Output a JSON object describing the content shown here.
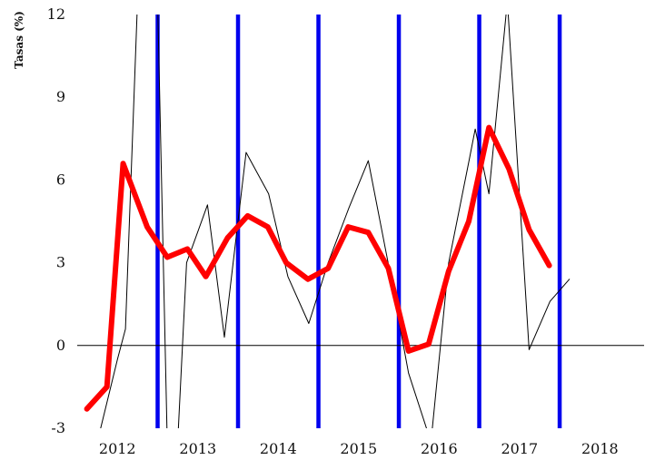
{
  "chart_data": {
    "type": "line",
    "ylabel": "Tasas (%)",
    "xlabel": "",
    "ylim": [
      -3,
      12
    ],
    "yticks": [
      -3,
      0,
      3,
      6,
      9,
      12
    ],
    "xlim": [
      2011.5,
      2018.55
    ],
    "xticks": [
      {
        "label": "2012",
        "x": 2012
      },
      {
        "label": "2013",
        "x": 2013
      },
      {
        "label": "2014",
        "x": 2014
      },
      {
        "label": "2015",
        "x": 2015
      },
      {
        "label": "2016",
        "x": 2016
      },
      {
        "label": "2017",
        "x": 2017
      },
      {
        "label": "2018",
        "x": 2018
      }
    ],
    "grid": false,
    "zero_line": true,
    "vertical_markers": {
      "color": "#0000ee",
      "x": [
        2012.5,
        2013.5,
        2014.5,
        2015.5,
        2016.5,
        2017.5
      ]
    },
    "series": [
      {
        "color": "#000000",
        "style": "thin",
        "points": [
          [
            2011.75,
            -3.5
          ],
          [
            2012.0,
            -0.5
          ],
          [
            2012.1,
            0.6
          ],
          [
            2012.25,
            12.5
          ],
          [
            2012.5,
            12.5
          ],
          [
            2012.62,
            -3.5
          ],
          [
            2012.75,
            -3.5
          ],
          [
            2012.86,
            3.0
          ],
          [
            2013.12,
            5.1
          ],
          [
            2013.33,
            0.3
          ],
          [
            2013.6,
            7.0
          ],
          [
            2013.88,
            5.5
          ],
          [
            2014.12,
            2.5
          ],
          [
            2014.38,
            0.8
          ],
          [
            2014.62,
            3.0
          ],
          [
            2014.88,
            5.0
          ],
          [
            2015.12,
            6.7
          ],
          [
            2015.38,
            2.8
          ],
          [
            2015.62,
            -1.0
          ],
          [
            2015.9,
            -3.5
          ],
          [
            2016.12,
            3.0
          ],
          [
            2016.38,
            6.8
          ],
          [
            2016.45,
            7.85
          ],
          [
            2016.62,
            5.5
          ],
          [
            2016.85,
            12.5
          ],
          [
            2017.12,
            -0.15
          ],
          [
            2017.38,
            1.6
          ],
          [
            2017.62,
            2.4
          ]
        ]
      },
      {
        "color": "#ff0000",
        "style": "thick",
        "points": [
          [
            2011.62,
            -2.3
          ],
          [
            2011.87,
            -1.5
          ],
          [
            2012.07,
            6.6
          ],
          [
            2012.37,
            4.3
          ],
          [
            2012.62,
            3.2
          ],
          [
            2012.87,
            3.5
          ],
          [
            2013.1,
            2.5
          ],
          [
            2013.37,
            3.9
          ],
          [
            2013.62,
            4.7
          ],
          [
            2013.87,
            4.3
          ],
          [
            2014.1,
            3.0
          ],
          [
            2014.37,
            2.4
          ],
          [
            2014.62,
            2.8
          ],
          [
            2014.87,
            4.3
          ],
          [
            2015.12,
            4.1
          ],
          [
            2015.37,
            2.8
          ],
          [
            2015.62,
            -0.2
          ],
          [
            2015.87,
            0.05
          ],
          [
            2016.12,
            2.7
          ],
          [
            2016.37,
            4.5
          ],
          [
            2016.62,
            7.9
          ],
          [
            2016.87,
            6.4
          ],
          [
            2017.12,
            4.2
          ],
          [
            2017.37,
            2.9
          ]
        ]
      }
    ]
  }
}
